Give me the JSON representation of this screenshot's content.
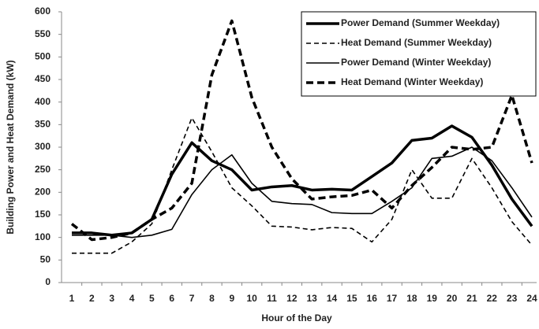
{
  "chart_data": {
    "type": "line",
    "xlabel": "Hour of the Day",
    "ylabel": "Building Power and Heat Demand (kW)",
    "categories": [
      1,
      2,
      3,
      4,
      5,
      6,
      7,
      8,
      9,
      10,
      11,
      12,
      13,
      14,
      15,
      16,
      17,
      18,
      19,
      20,
      21,
      22,
      23,
      24
    ],
    "ylim": [
      0,
      600
    ],
    "yticks": [
      0,
      50,
      100,
      150,
      200,
      250,
      300,
      350,
      400,
      450,
      500,
      550,
      600
    ],
    "grid": false,
    "legend": "upper right",
    "series": [
      {
        "name": "Power Demand (Summer Weekday)",
        "color": "#000000",
        "style": "solid",
        "weight": "bold",
        "values": [
          110,
          110,
          105,
          110,
          140,
          240,
          310,
          270,
          250,
          205,
          212,
          215,
          205,
          207,
          205,
          235,
          265,
          315,
          320,
          347,
          322,
          260,
          185,
          125
        ]
      },
      {
        "name": "Heat Demand (Summer Weekday)",
        "color": "#000000",
        "style": "dashed",
        "weight": "normal",
        "values": [
          65,
          65,
          65,
          90,
          130,
          250,
          365,
          290,
          210,
          170,
          125,
          123,
          117,
          122,
          120,
          90,
          140,
          250,
          187,
          187,
          275,
          210,
          135,
          83
        ]
      },
      {
        "name": "Power Demand (Winter Weekday)",
        "color": "#000000",
        "style": "solid",
        "weight": "normal",
        "values": [
          105,
          105,
          105,
          100,
          105,
          118,
          195,
          250,
          283,
          220,
          180,
          175,
          173,
          155,
          153,
          153,
          180,
          210,
          275,
          280,
          300,
          270,
          210,
          145
        ]
      },
      {
        "name": "Heat Demand (Winter Weekday)",
        "color": "#000000",
        "style": "dashed",
        "weight": "bold",
        "values": [
          130,
          95,
          100,
          110,
          140,
          165,
          220,
          460,
          580,
          410,
          300,
          230,
          185,
          190,
          193,
          205,
          165,
          215,
          255,
          300,
          295,
          300,
          415,
          265
        ]
      }
    ]
  }
}
